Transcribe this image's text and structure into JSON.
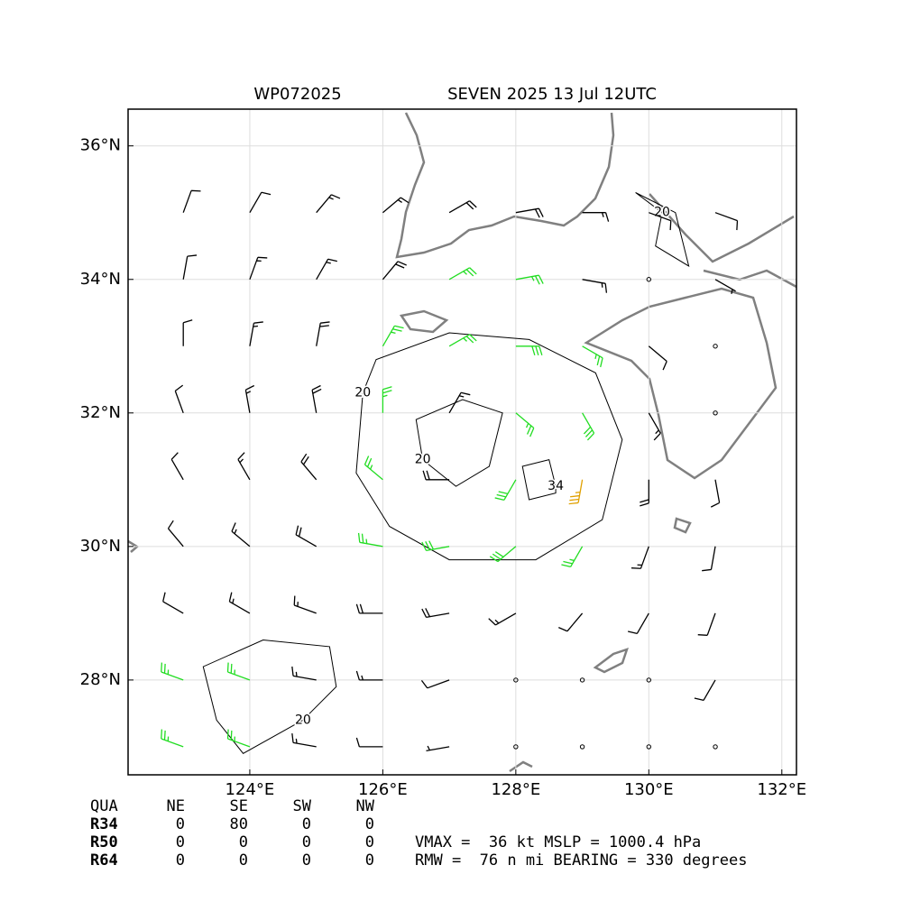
{
  "chart_data": {
    "type": "barbs",
    "title_left": "WP072025",
    "title_right": "SEVEN 2025 13 Jul 12UTC",
    "xlim": [
      122.17,
      132.22
    ],
    "ylim": [
      26.58,
      36.55
    ],
    "xticks": [
      {
        "value": 124,
        "label": "124°E"
      },
      {
        "value": 126,
        "label": "126°E"
      },
      {
        "value": 128,
        "label": "128°E"
      },
      {
        "value": 130,
        "label": "130°E"
      },
      {
        "value": 132,
        "label": "132°E"
      }
    ],
    "yticks": [
      {
        "value": 28,
        "label": "28°N"
      },
      {
        "value": 30,
        "label": "30°N"
      },
      {
        "value": 32,
        "label": "32°N"
      },
      {
        "value": 34,
        "label": "34°N"
      },
      {
        "value": 36,
        "label": "36°N"
      }
    ],
    "grid": true,
    "colors": {
      "calm": "#000000",
      "weak": "#000000",
      "strong": "#22dd22",
      "storm": "#e0a000",
      "contour": "#000000",
      "coast": "#808080"
    },
    "barbs": {
      "lon": [
        123,
        124,
        125,
        126,
        127,
        128,
        129,
        130,
        131
      ],
      "lat": [
        35,
        34,
        33,
        32,
        31,
        30,
        29,
        28,
        27
      ],
      "direction": [
        [
          20,
          30,
          40,
          50,
          60,
          80,
          90,
          110,
          110
        ],
        [
          10,
          20,
          30,
          40,
          60,
          80,
          100,
          120,
          120
        ],
        [
          360,
          10,
          10,
          30,
          60,
          90,
          120,
          130,
          140
        ],
        [
          340,
          350,
          350,
          360,
          30,
          130,
          150,
          150,
          160
        ],
        [
          330,
          330,
          320,
          310,
          270,
          210,
          190,
          180,
          170
        ],
        [
          320,
          310,
          300,
          280,
          260,
          230,
          210,
          200,
          190
        ],
        [
          300,
          300,
          290,
          270,
          260,
          240,
          220,
          210,
          200
        ],
        [
          290,
          290,
          280,
          270,
          250,
          0,
          0,
          0,
          210
        ],
        [
          290,
          290,
          280,
          270,
          260,
          0,
          0,
          0,
          0
        ]
      ],
      "speed": [
        [
          10,
          10,
          15,
          15,
          20,
          20,
          15,
          10,
          10
        ],
        [
          10,
          15,
          15,
          20,
          25,
          25,
          15,
          0,
          5
        ],
        [
          10,
          15,
          20,
          25,
          25,
          30,
          25,
          10,
          0
        ],
        [
          10,
          15,
          20,
          25,
          15,
          25,
          30,
          15,
          0
        ],
        [
          10,
          15,
          20,
          25,
          20,
          30,
          35,
          20,
          10
        ],
        [
          10,
          15,
          20,
          25,
          30,
          30,
          25,
          15,
          10
        ],
        [
          10,
          15,
          15,
          20,
          20,
          15,
          10,
          10,
          10
        ],
        [
          25,
          25,
          15,
          15,
          10,
          0,
          0,
          0,
          10
        ],
        [
          25,
          25,
          15,
          10,
          5,
          0,
          0,
          0,
          0
        ]
      ]
    },
    "contours": [
      {
        "level": 20,
        "lon": [
          125.7,
          125.9,
          127,
          128.2,
          129.2,
          129.6,
          129.3,
          128.3,
          127,
          126.1,
          125.6,
          125.7
        ],
        "lat": [
          32.3,
          32.8,
          33.2,
          33.1,
          32.6,
          31.6,
          30.4,
          29.8,
          29.8,
          30.3,
          31.1,
          32.3
        ]
      },
      {
        "level": 20,
        "lon": [
          126.6,
          126.5,
          127.2,
          127.8,
          127.6,
          127.1,
          126.6
        ],
        "lat": [
          31.3,
          31.9,
          32.2,
          32.0,
          31.2,
          30.9,
          31.3
        ]
      },
      {
        "level": 34,
        "lon": [
          128.6,
          128.5,
          128.1,
          128.2,
          128.6,
          128.6
        ],
        "lat": [
          30.9,
          31.3,
          31.2,
          30.7,
          30.8,
          30.9
        ]
      },
      {
        "level": 20,
        "lon": [
          130.2,
          129.8,
          130.4,
          130.6,
          130.1,
          130.2
        ],
        "lat": [
          35.0,
          35.3,
          35.0,
          34.2,
          34.5,
          35.0
        ]
      },
      {
        "level": 20,
        "lon": [
          124.8,
          124.8,
          123.9,
          123.5,
          123.3,
          124.2,
          125.2,
          125.3,
          124.8
        ],
        "lat": [
          27.4,
          27.4,
          26.9,
          27.4,
          28.2,
          28.6,
          28.5,
          27.9,
          27.4
        ]
      }
    ],
    "table": {
      "header": [
        "QUA",
        "NE",
        "SE",
        "SW",
        "NW"
      ],
      "rows": [
        [
          "R34",
          "0",
          "80",
          "0",
          "0"
        ],
        [
          "R50",
          "0",
          "0",
          "0",
          "0"
        ],
        [
          "R64",
          "0",
          "0",
          "0",
          "0"
        ]
      ]
    },
    "info": [
      "VMAX =  36 kt MSLP = 1000.4 hPa",
      "RMW =  76 n mi BEARING = 330 degrees"
    ]
  }
}
